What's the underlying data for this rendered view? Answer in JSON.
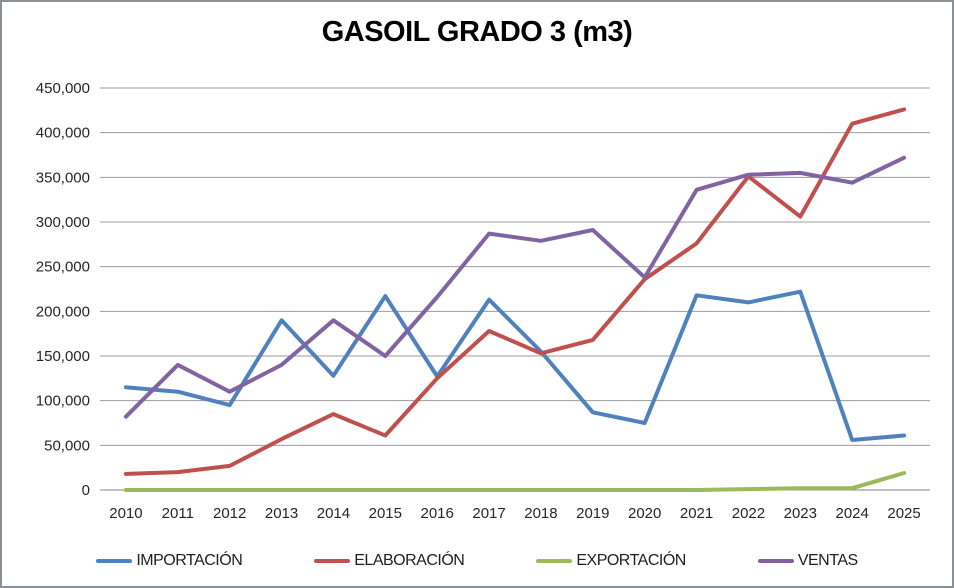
{
  "title": "GASOIL GRADO 3 (m3)",
  "frame": {
    "border_color": "#8b9097",
    "background": "#ffffff"
  },
  "chart_data": {
    "type": "line",
    "title": "GASOIL GRADO 3 (m3)",
    "categories": [
      "2010",
      "2011",
      "2012",
      "2013",
      "2014",
      "2015",
      "2016",
      "2017",
      "2018",
      "2019",
      "2020",
      "2021",
      "2022",
      "2023",
      "2024",
      "2025"
    ],
    "series": [
      {
        "name": "IMPORTACIÓN",
        "color": "#4F81BD",
        "values": [
          115000,
          110000,
          95000,
          190000,
          128000,
          217000,
          127000,
          213000,
          155000,
          87000,
          75000,
          218000,
          210000,
          222000,
          56000,
          61000
        ]
      },
      {
        "name": "ELABORACIÓN",
        "color": "#C0504D",
        "values": [
          18000,
          20000,
          27000,
          57000,
          85000,
          61000,
          125000,
          178000,
          153000,
          168000,
          236000,
          276000,
          351000,
          306000,
          410000,
          426000
        ]
      },
      {
        "name": "EXPORTACIÓN",
        "color": "#9BBB59",
        "values": [
          0,
          0,
          0,
          0,
          0,
          0,
          0,
          0,
          0,
          0,
          0,
          0,
          1000,
          2000,
          2000,
          19000
        ]
      },
      {
        "name": "VENTAS",
        "color": "#8064A2",
        "values": [
          82000,
          140000,
          110000,
          140000,
          190000,
          150000,
          216000,
          287000,
          279000,
          291000,
          238000,
          336000,
          353000,
          355000,
          344000,
          372000
        ]
      }
    ],
    "xlabel": "",
    "ylabel": "",
    "ylim": [
      0,
      450000
    ],
    "ytick_step": 50000,
    "ytick_labels": [
      "0",
      "50,000",
      "100,000",
      "150,000",
      "200,000",
      "250,000",
      "300,000",
      "350,000",
      "400,000",
      "450,000"
    ],
    "grid": true,
    "legend_position": "bottom",
    "line_width": 4,
    "gridline_color": "#9c9c9c",
    "axis_line_color": "#808080",
    "label_color": "#262626",
    "label_font_size": 15
  }
}
